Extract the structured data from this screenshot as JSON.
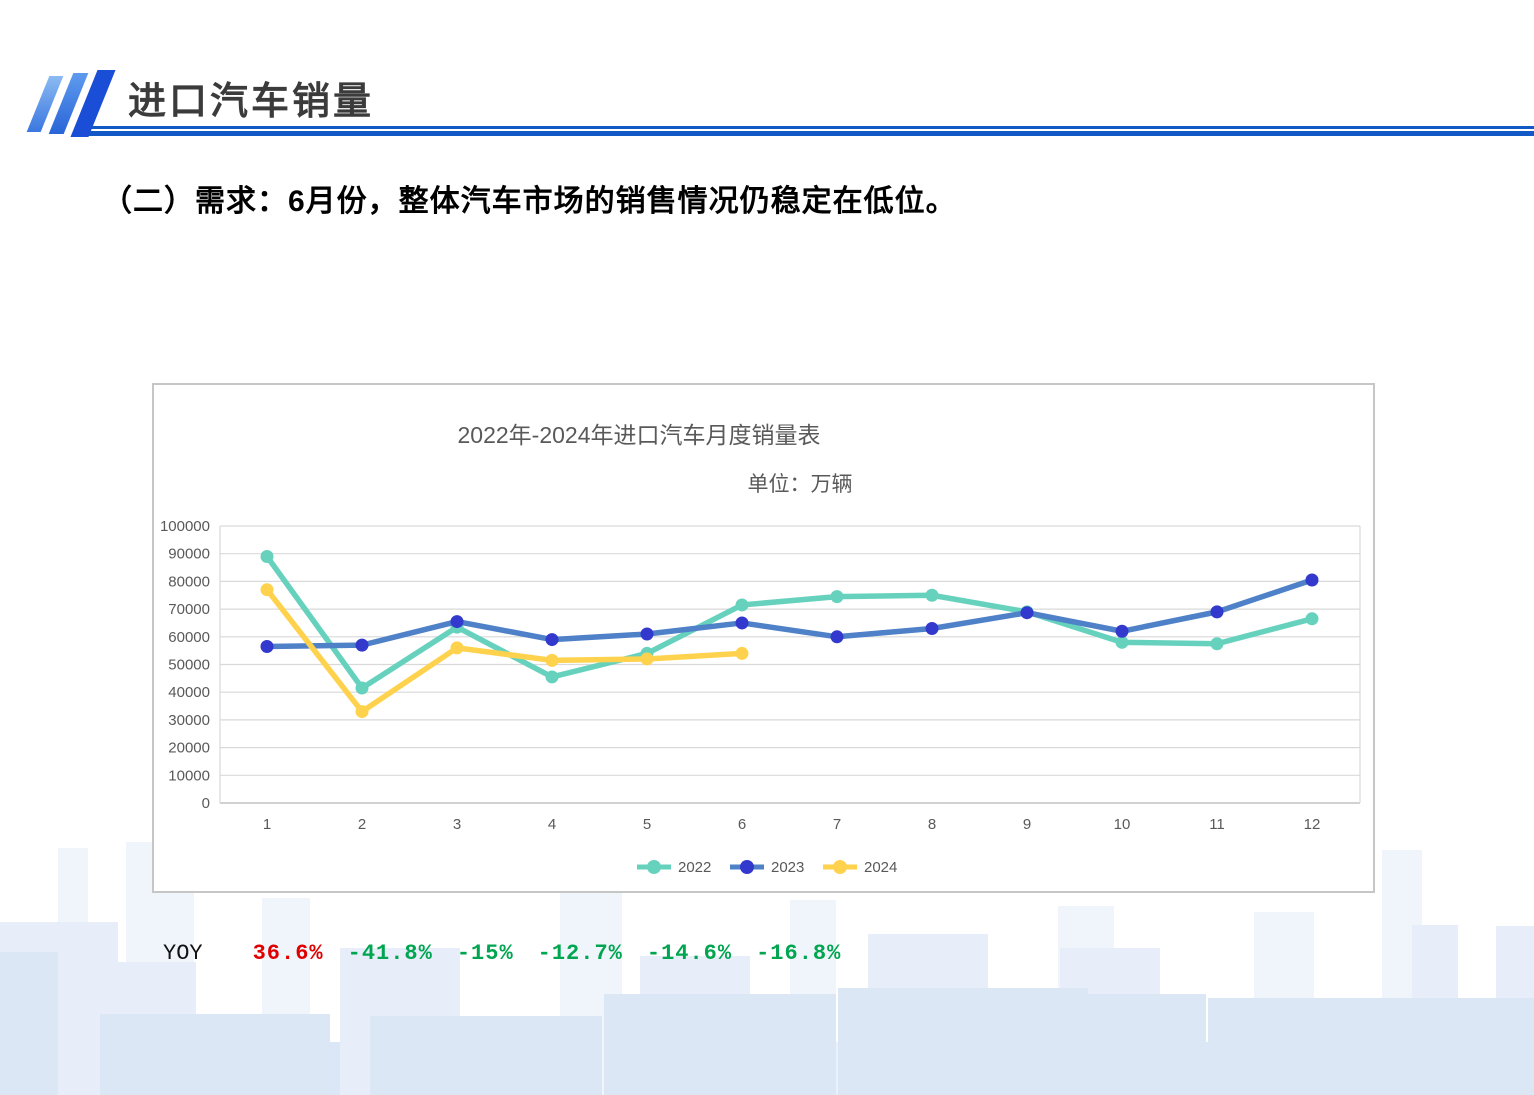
{
  "header": {
    "title": "进口汽车销量"
  },
  "subtitle": "（二）需求：6月份，整体汽车市场的销售情况仍稳定在低位。",
  "chart_data": {
    "type": "line",
    "title": "2022年-2024年进口汽车月度销量表",
    "unit_label": "单位：万辆",
    "categories": [
      "1",
      "2",
      "3",
      "4",
      "5",
      "6",
      "7",
      "8",
      "9",
      "10",
      "11",
      "12"
    ],
    "series": [
      {
        "name": "2022",
        "color": "#66d2bd",
        "marker_color": "#66d2bd",
        "values": [
          89000,
          41500,
          63500,
          45500,
          54000,
          71500,
          74500,
          75000,
          69000,
          58000,
          57500,
          66500
        ]
      },
      {
        "name": "2023",
        "color": "#4e81c8",
        "marker_color": "#3239cc",
        "values": [
          56500,
          57000,
          65500,
          59000,
          61000,
          65000,
          60000,
          63000,
          68700,
          62000,
          69000,
          80500
        ]
      },
      {
        "name": "2024",
        "color": "#ffd24d",
        "marker_color": "#ffd24d",
        "values": [
          77000,
          33000,
          56000,
          51500,
          52000,
          54000
        ]
      }
    ],
    "xlabel": "",
    "ylabel": "",
    "ylim": [
      0,
      100000
    ],
    "ytick_step": 10000,
    "grid": true,
    "grid_color": "#d9d9d9",
    "axis_text_color": "#595959",
    "legend_position": "bottom-center"
  },
  "yoy": {
    "label": "YOY",
    "values": [
      {
        "text": "36.6%",
        "color": "#e00000"
      },
      {
        "text": "-41.8%",
        "color": "#00a550"
      },
      {
        "text": "-15%",
        "color": "#00a550"
      },
      {
        "text": "-12.7%",
        "color": "#00a550"
      },
      {
        "text": "-14.6%",
        "color": "#00a550"
      },
      {
        "text": "-16.8%",
        "color": "#00a550"
      }
    ]
  },
  "colors": {
    "accent_blue": "#1259c7"
  }
}
